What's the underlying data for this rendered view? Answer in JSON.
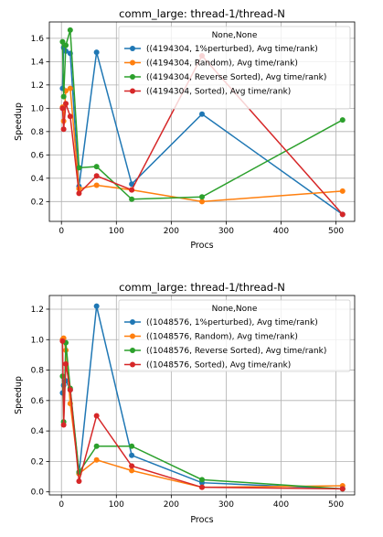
{
  "chart_data": [
    {
      "type": "line",
      "title": "comm_large: thread-1/thread-N",
      "xlabel": "Procs",
      "ylabel": "Speedup",
      "xlim": [
        -22,
        534
      ],
      "ylim": [
        0.03,
        1.74
      ],
      "xticks": [
        0,
        100,
        200,
        300,
        400,
        500
      ],
      "yticks": [
        0.2,
        0.4,
        0.6,
        0.8,
        1.0,
        1.2,
        1.4,
        1.6
      ],
      "ytick_labels": [
        "0.2",
        "0.4",
        "0.6",
        "0.8",
        "1.0",
        "1.2",
        "1.4",
        "1.6"
      ],
      "grid": true,
      "legend_title": "None,None",
      "legend_position": "top-right",
      "x": [
        2,
        4,
        8,
        16,
        32,
        64,
        128,
        256,
        512
      ],
      "series": [
        {
          "name": "((4194304, 1%perturbed), Avg time/rank)",
          "color": "#1f77b4",
          "values": [
            1.17,
            1.52,
            1.49,
            1.47,
            0.33,
            1.48,
            0.35,
            0.95,
            0.09
          ]
        },
        {
          "name": "((4194304, Random), Avg time/rank)",
          "color": "#ff7f0e",
          "values": [
            1.01,
            0.89,
            1.15,
            1.17,
            0.31,
            0.34,
            0.3,
            0.2,
            0.29
          ]
        },
        {
          "name": "((4194304, Reverse Sorted), Avg time/rank)",
          "color": "#2ca02c",
          "values": [
            1.57,
            1.1,
            1.54,
            1.67,
            0.49,
            0.5,
            0.22,
            0.24,
            0.9
          ]
        },
        {
          "name": "((4194304, Sorted), Avg time/rank)",
          "color": "#d62728",
          "values": [
            1.0,
            0.82,
            1.04,
            0.93,
            0.27,
            0.42,
            0.3,
            1.45,
            0.09
          ]
        }
      ]
    },
    {
      "type": "line",
      "title": "comm_large: thread-1/thread-N",
      "xlabel": "Procs",
      "ylabel": "Speedup",
      "xlim": [
        -22,
        534
      ],
      "ylim": [
        -0.02,
        1.29
      ],
      "xticks": [
        0,
        100,
        200,
        300,
        400,
        500
      ],
      "yticks": [
        0.0,
        0.2,
        0.4,
        0.6,
        0.8,
        1.0,
        1.2
      ],
      "ytick_labels": [
        "0.0",
        "0.2",
        "0.4",
        "0.6",
        "0.8",
        "1.0",
        "1.2"
      ],
      "grid": true,
      "legend_title": "None,None",
      "legend_position": "top-right",
      "x": [
        2,
        4,
        8,
        16,
        32,
        64,
        128,
        256,
        512
      ],
      "series": [
        {
          "name": "((1048576, 1%perturbed), Avg time/rank)",
          "color": "#1f77b4",
          "values": [
            0.65,
            0.7,
            0.73,
            0.67,
            0.12,
            1.22,
            0.24,
            0.06,
            0.02
          ]
        },
        {
          "name": "((1048576, Random), Avg time/rank)",
          "color": "#ff7f0e",
          "values": [
            1.0,
            1.01,
            0.93,
            0.58,
            0.12,
            0.21,
            0.14,
            0.03,
            0.04
          ]
        },
        {
          "name": "((1048576, Reverse Sorted), Avg time/rank)",
          "color": "#2ca02c",
          "values": [
            0.76,
            0.46,
            0.98,
            0.68,
            0.13,
            0.3,
            0.3,
            0.08,
            0.02
          ]
        },
        {
          "name": "((1048576, Sorted), Avg time/rank)",
          "color": "#d62728",
          "values": [
            0.99,
            0.44,
            0.84,
            0.67,
            0.07,
            0.5,
            0.17,
            0.03,
            0.02
          ]
        }
      ]
    }
  ]
}
